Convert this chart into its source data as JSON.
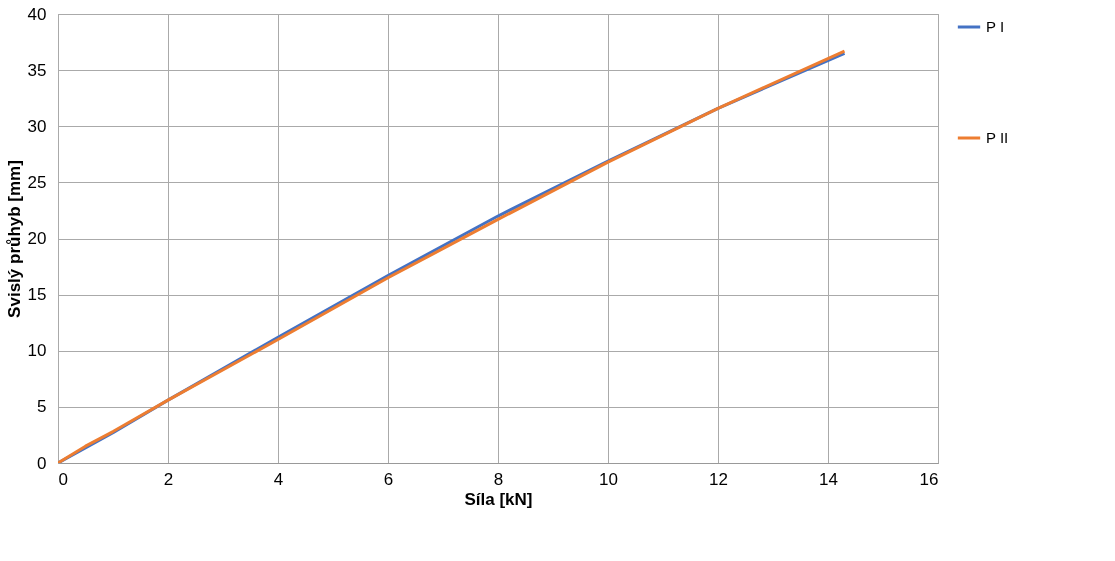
{
  "chart_data": {
    "type": "line",
    "xlabel": "Síla [kN]",
    "ylabel": "Svislý průhyb [mm]",
    "xlim": [
      0,
      16
    ],
    "xticks": [
      0,
      2,
      4,
      6,
      8,
      10,
      12,
      14,
      16
    ],
    "ylim": [
      0,
      40
    ],
    "yticks": [
      0,
      5,
      10,
      15,
      20,
      25,
      30,
      35,
      40
    ],
    "grid": true,
    "legend": "right",
    "marker": "none",
    "line_style": "solid",
    "series": [
      {
        "name": "P I",
        "color": "#4472c4",
        "x": [
          0,
          1,
          2,
          4,
          6,
          8,
          10,
          12,
          14.3
        ],
        "values": [
          0,
          2.7,
          5.6,
          11.2,
          16.7,
          22.0,
          26.9,
          31.6,
          36.5
        ]
      },
      {
        "name": "P II",
        "color": "#ed7d31",
        "x": [
          0,
          0.5,
          1,
          2,
          4,
          6,
          8,
          10,
          12,
          14.3
        ],
        "values": [
          0,
          1.5,
          2.8,
          5.6,
          11.0,
          16.5,
          21.7,
          26.8,
          31.6,
          36.7
        ]
      }
    ]
  }
}
